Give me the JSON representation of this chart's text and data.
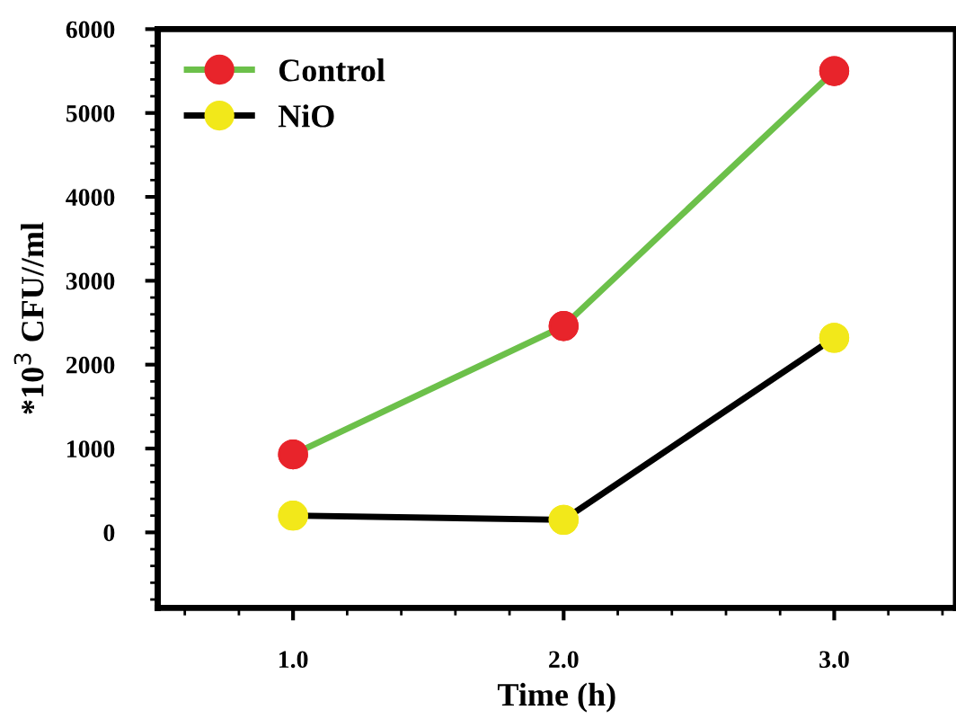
{
  "chart_data": {
    "type": "line",
    "xlabel": "Time (h)",
    "ylabel": "*10$^{3}$ CFU//ml",
    "x": [
      1.0,
      2.0,
      3.0
    ],
    "series": [
      {
        "name": "Control",
        "color": "#6cc04a",
        "colors": [
          "#e8242b",
          "#e8242b",
          "#e8242b"
        ],
        "values": [
          930,
          2460,
          5500
        ]
      },
      {
        "name": "NiO",
        "color": "#000000",
        "colors": [
          "#f2e81a",
          "#f2e81a",
          "#f2e81a"
        ],
        "values": [
          200,
          150,
          2320
        ]
      }
    ],
    "xlim": [
      0.5,
      3.45
    ],
    "xticks": [
      {
        "value": 1.0,
        "label": "1.0"
      },
      {
        "value": 2.0,
        "label": "2.0"
      },
      {
        "value": 3.0,
        "label": "3.0"
      }
    ],
    "ylim": [
      -900,
      6000
    ],
    "yticks": [
      0,
      1000,
      2000,
      3000,
      4000,
      5000,
      6000
    ],
    "grid": false,
    "legend": "top left",
    "marker": "circle",
    "line_style": "solid"
  }
}
